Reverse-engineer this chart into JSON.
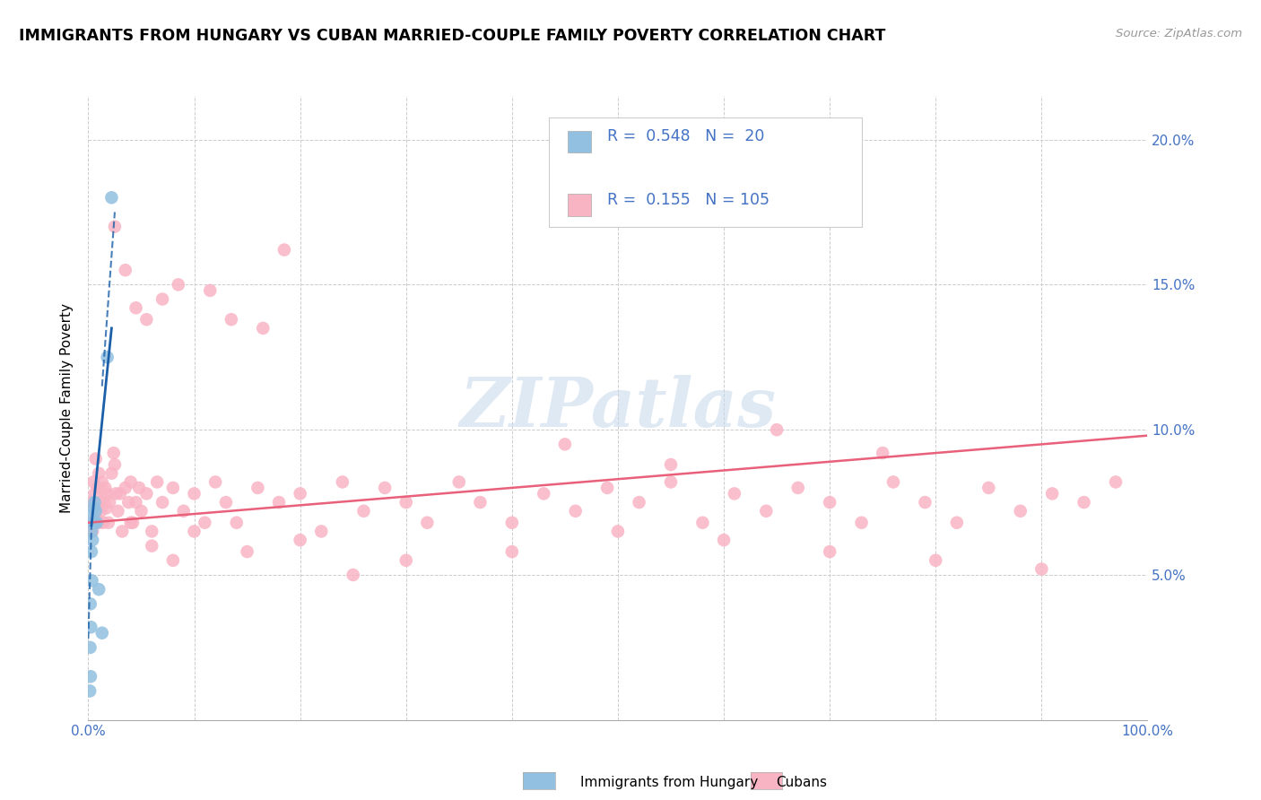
{
  "title": "IMMIGRANTS FROM HUNGARY VS CUBAN MARRIED-COUPLE FAMILY POVERTY CORRELATION CHART",
  "source": "Source: ZipAtlas.com",
  "ylabel": "Married-Couple Family Poverty",
  "hungary_R": "0.548",
  "hungary_N": "20",
  "cuban_R": "0.155",
  "cuban_N": "105",
  "blue_color": "#92c0e0",
  "pink_color": "#f9b4c4",
  "trend_blue": "#1a5fa8",
  "trend_pink": "#e8607a",
  "watermark": "ZIPatlas",
  "background_color": "#ffffff",
  "grid_color": "#cccccc",
  "tick_color": "#4472c4",
  "hungary_x": [
    0.0015,
    0.0018,
    0.002,
    0.0022,
    0.0025,
    0.003,
    0.003,
    0.0035,
    0.004,
    0.004,
    0.005,
    0.005,
    0.006,
    0.006,
    0.007,
    0.008,
    0.01,
    0.013,
    0.018,
    0.022
  ],
  "hungary_y": [
    0.01,
    0.025,
    0.04,
    0.015,
    0.032,
    0.058,
    0.065,
    0.048,
    0.062,
    0.07,
    0.068,
    0.073,
    0.075,
    0.068,
    0.072,
    0.068,
    0.045,
    0.03,
    0.125,
    0.18
  ],
  "cuban_x": [
    0.003,
    0.004,
    0.005,
    0.005,
    0.006,
    0.007,
    0.007,
    0.008,
    0.009,
    0.01,
    0.01,
    0.011,
    0.012,
    0.013,
    0.014,
    0.015,
    0.016,
    0.017,
    0.018,
    0.019,
    0.02,
    0.022,
    0.024,
    0.025,
    0.026,
    0.028,
    0.03,
    0.032,
    0.035,
    0.038,
    0.04,
    0.042,
    0.045,
    0.048,
    0.05,
    0.055,
    0.06,
    0.065,
    0.07,
    0.08,
    0.09,
    0.1,
    0.11,
    0.12,
    0.13,
    0.14,
    0.16,
    0.18,
    0.2,
    0.22,
    0.24,
    0.26,
    0.28,
    0.3,
    0.32,
    0.35,
    0.37,
    0.4,
    0.43,
    0.46,
    0.49,
    0.52,
    0.55,
    0.58,
    0.61,
    0.64,
    0.67,
    0.7,
    0.73,
    0.76,
    0.79,
    0.82,
    0.85,
    0.88,
    0.91,
    0.94,
    0.97,
    0.04,
    0.06,
    0.08,
    0.1,
    0.15,
    0.2,
    0.25,
    0.3,
    0.4,
    0.5,
    0.6,
    0.7,
    0.8,
    0.9,
    0.025,
    0.035,
    0.045,
    0.055,
    0.07,
    0.085,
    0.115,
    0.135,
    0.165,
    0.185,
    0.45,
    0.55,
    0.65,
    0.75
  ],
  "cuban_y": [
    0.075,
    0.065,
    0.082,
    0.068,
    0.078,
    0.07,
    0.09,
    0.073,
    0.08,
    0.068,
    0.085,
    0.075,
    0.072,
    0.082,
    0.068,
    0.076,
    0.08,
    0.073,
    0.078,
    0.068,
    0.075,
    0.085,
    0.092,
    0.088,
    0.078,
    0.072,
    0.078,
    0.065,
    0.08,
    0.075,
    0.082,
    0.068,
    0.075,
    0.08,
    0.072,
    0.078,
    0.065,
    0.082,
    0.075,
    0.08,
    0.072,
    0.078,
    0.068,
    0.082,
    0.075,
    0.068,
    0.08,
    0.075,
    0.078,
    0.065,
    0.082,
    0.072,
    0.08,
    0.075,
    0.068,
    0.082,
    0.075,
    0.068,
    0.078,
    0.072,
    0.08,
    0.075,
    0.082,
    0.068,
    0.078,
    0.072,
    0.08,
    0.075,
    0.068,
    0.082,
    0.075,
    0.068,
    0.08,
    0.072,
    0.078,
    0.075,
    0.082,
    0.068,
    0.06,
    0.055,
    0.065,
    0.058,
    0.062,
    0.05,
    0.055,
    0.058,
    0.065,
    0.062,
    0.058,
    0.055,
    0.052,
    0.17,
    0.155,
    0.142,
    0.138,
    0.145,
    0.15,
    0.148,
    0.138,
    0.135,
    0.162,
    0.095,
    0.088,
    0.1,
    0.092
  ],
  "xlim": [
    0.0,
    1.0
  ],
  "ylim": [
    0.0,
    0.215
  ]
}
